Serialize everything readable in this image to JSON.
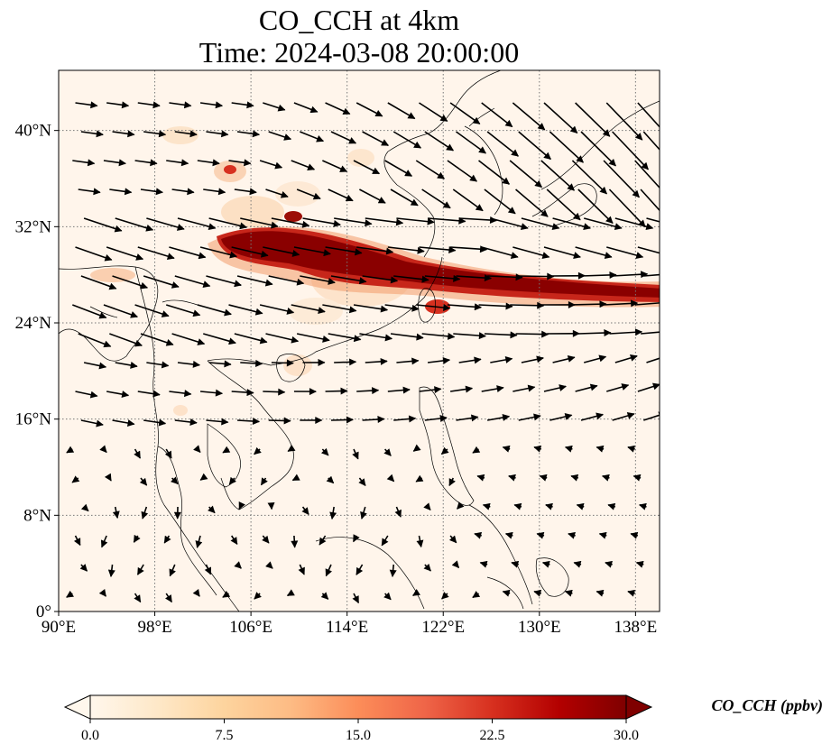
{
  "title": {
    "line1": "CO_CCH at 4km",
    "line2": "Time: 2024-03-08 20:00:00"
  },
  "map": {
    "lon_range": [
      90,
      140
    ],
    "lat_range": [
      0,
      45
    ],
    "lon_ticks": [
      {
        "value": 90,
        "label": "90°E"
      },
      {
        "value": 98,
        "label": "98°E"
      },
      {
        "value": 106,
        "label": "106°E"
      },
      {
        "value": 114,
        "label": "114°E"
      },
      {
        "value": 122,
        "label": "122°E"
      },
      {
        "value": 130,
        "label": "130°E"
      },
      {
        "value": 138,
        "label": "138°E"
      }
    ],
    "lat_ticks": [
      {
        "value": 0,
        "label": "0°"
      },
      {
        "value": 8,
        "label": "8°N"
      },
      {
        "value": 16,
        "label": "16°N"
      },
      {
        "value": 24,
        "label": "24°N"
      },
      {
        "value": 32,
        "label": "32°N"
      },
      {
        "value": 40,
        "label": "40°N"
      }
    ],
    "gridlines": true,
    "background_color": "#fff5eb",
    "plume_color": "#7f0000"
  },
  "colorbar": {
    "label": "CO_CCH (ppbv)",
    "min": 0,
    "max": 30,
    "ticks": [
      "0.0",
      "7.5",
      "15.0",
      "22.5",
      "30.0"
    ],
    "colormap": "OrRd",
    "stops": [
      "#fff7ec",
      "#fee8c8",
      "#fdd49e",
      "#fdbb84",
      "#fc8d59",
      "#ef6548",
      "#d7301f",
      "#b30000",
      "#7f0000"
    ]
  }
}
